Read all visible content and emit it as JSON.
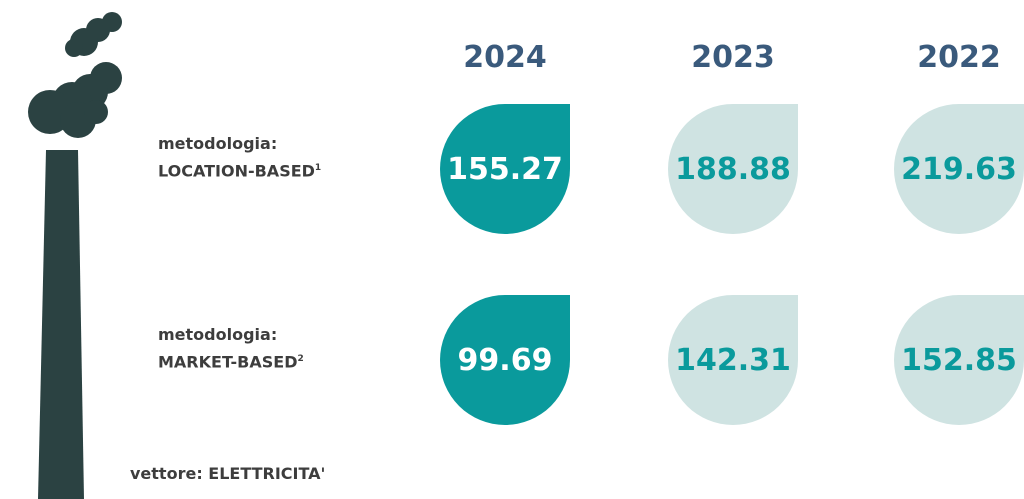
{
  "years": [
    "2024",
    "2023",
    "2022"
  ],
  "rows": [
    {
      "label": "metodologia:",
      "method": "LOCATION-BASED",
      "note": "1",
      "values": [
        "155.27",
        "188.88",
        "219.63"
      ]
    },
    {
      "label": "metodologia:",
      "method": "MARKET-BASED",
      "note": "2",
      "values": [
        "99.69",
        "142.31",
        "152.85"
      ]
    }
  ],
  "footer": "vettore: ELETTRICITA'"
}
